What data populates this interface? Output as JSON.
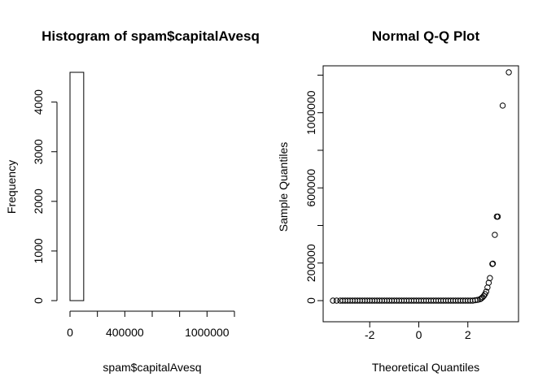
{
  "chart_data": [
    {
      "type": "bar",
      "title": "Histogram of spam$capitalAvesq",
      "xlabel": "spam$capitalAvesq",
      "ylabel": "Frequency",
      "xlim": [
        0,
        1200000
      ],
      "ylim": [
        0,
        4600
      ],
      "xticks": [
        0,
        400000,
        1000000
      ],
      "yticks": [
        0,
        1000,
        2000,
        3000,
        4000
      ],
      "bin_width": 100000,
      "bins": [
        {
          "start": 0,
          "end": 100000,
          "value": 4600
        },
        {
          "start": 100000,
          "end": 200000,
          "value": 0
        },
        {
          "start": 200000,
          "end": 300000,
          "value": 0
        },
        {
          "start": 300000,
          "end": 400000,
          "value": 0
        },
        {
          "start": 400000,
          "end": 500000,
          "value": 0
        },
        {
          "start": 500000,
          "end": 600000,
          "value": 0
        },
        {
          "start": 600000,
          "end": 700000,
          "value": 0
        },
        {
          "start": 700000,
          "end": 800000,
          "value": 0
        },
        {
          "start": 800000,
          "end": 900000,
          "value": 0
        },
        {
          "start": 900000,
          "end": 1000000,
          "value": 0
        },
        {
          "start": 1000000,
          "end": 1100000,
          "value": 0
        },
        {
          "start": 1100000,
          "end": 1200000,
          "value": 0
        }
      ]
    },
    {
      "type": "scatter",
      "title": "Normal Q-Q Plot",
      "xlabel": "Theoretical Quantiles",
      "ylabel": "Sample Quantiles",
      "xlim": [
        -3.6,
        3.8
      ],
      "ylim": [
        0,
        1215000
      ],
      "xticks": [
        -2,
        0,
        2
      ],
      "yticks": [
        0,
        200000,
        600000,
        1000000
      ],
      "points": [
        [
          -3.5,
          0
        ],
        [
          -3.35,
          0
        ],
        [
          -3.2,
          0
        ],
        [
          -3.1,
          0
        ],
        [
          -3.0,
          0
        ],
        [
          -2.9,
          0
        ],
        [
          -2.8,
          0
        ],
        [
          -2.7,
          0
        ],
        [
          -2.6,
          0
        ],
        [
          -2.5,
          0
        ],
        [
          -2.4,
          0
        ],
        [
          -2.3,
          0
        ],
        [
          -2.2,
          0
        ],
        [
          -2.1,
          0
        ],
        [
          -2.0,
          0
        ],
        [
          -1.9,
          0
        ],
        [
          -1.8,
          0
        ],
        [
          -1.7,
          0
        ],
        [
          -1.6,
          0
        ],
        [
          -1.5,
          0
        ],
        [
          -1.4,
          0
        ],
        [
          -1.3,
          0
        ],
        [
          -1.2,
          0
        ],
        [
          -1.1,
          0
        ],
        [
          -1.0,
          0
        ],
        [
          -0.9,
          0
        ],
        [
          -0.8,
          0
        ],
        [
          -0.7,
          0
        ],
        [
          -0.6,
          0
        ],
        [
          -0.5,
          0
        ],
        [
          -0.4,
          0
        ],
        [
          -0.3,
          0
        ],
        [
          -0.2,
          0
        ],
        [
          -0.1,
          0
        ],
        [
          0.0,
          0
        ],
        [
          0.1,
          0
        ],
        [
          0.2,
          0
        ],
        [
          0.3,
          0
        ],
        [
          0.4,
          0
        ],
        [
          0.5,
          0
        ],
        [
          0.6,
          0
        ],
        [
          0.7,
          0
        ],
        [
          0.8,
          0
        ],
        [
          0.9,
          0
        ],
        [
          1.0,
          0
        ],
        [
          1.1,
          0
        ],
        [
          1.2,
          0
        ],
        [
          1.3,
          0
        ],
        [
          1.4,
          0
        ],
        [
          1.5,
          0
        ],
        [
          1.6,
          0
        ],
        [
          1.7,
          0
        ],
        [
          1.8,
          0
        ],
        [
          1.9,
          0
        ],
        [
          2.0,
          0
        ],
        [
          2.1,
          0
        ],
        [
          2.2,
          0
        ],
        [
          2.3,
          2000
        ],
        [
          2.4,
          4000
        ],
        [
          2.5,
          8000
        ],
        [
          2.55,
          12000
        ],
        [
          2.6,
          18000
        ],
        [
          2.65,
          25000
        ],
        [
          2.7,
          35000
        ],
        [
          2.75,
          48000
        ],
        [
          2.8,
          70000
        ],
        [
          2.85,
          95000
        ],
        [
          2.9,
          120000
        ],
        [
          3.0,
          195000
        ],
        [
          3.02,
          197000
        ],
        [
          3.1,
          350000
        ],
        [
          3.18,
          447000
        ],
        [
          3.22,
          447000
        ],
        [
          3.42,
          1038000
        ],
        [
          3.67,
          1215000
        ]
      ]
    }
  ]
}
